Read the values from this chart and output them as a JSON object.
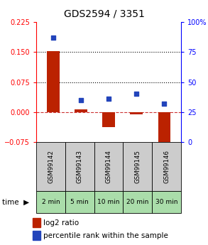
{
  "title": "GDS2594 / 3351",
  "samples": [
    "GSM99142",
    "GSM99143",
    "GSM99144",
    "GSM99145",
    "GSM99146"
  ],
  "time_labels": [
    "2 min",
    "5 min",
    "10 min",
    "20 min",
    "30 min"
  ],
  "log2_ratio": [
    0.153,
    0.007,
    -0.038,
    -0.005,
    -0.088
  ],
  "percentile_rank": [
    87,
    35,
    36,
    40,
    32
  ],
  "left_ylim": [
    -0.075,
    0.225
  ],
  "right_ylim": [
    0,
    100
  ],
  "left_yticks": [
    -0.075,
    0,
    0.075,
    0.15,
    0.225
  ],
  "right_yticks": [
    0,
    25,
    50,
    75,
    100
  ],
  "hlines": [
    0.075,
    0.15
  ],
  "bar_color": "#bb2200",
  "dot_color": "#2244bb",
  "zero_line_color": "#cc3333",
  "sample_bg": "#cccccc",
  "time_bg": "#aaddaa",
  "bar_width": 0.45,
  "title_fontsize": 10,
  "tick_fontsize": 7,
  "legend_fontsize": 7.5
}
